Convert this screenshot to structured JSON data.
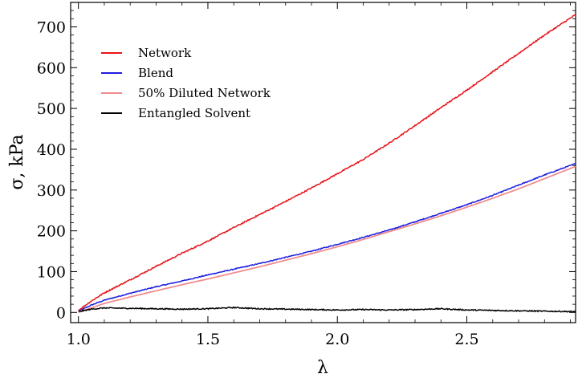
{
  "chart_data": {
    "type": "line",
    "xlabel": "λ",
    "ylabel": "σ, kPa",
    "xlim": [
      0.97,
      2.92
    ],
    "ylim": [
      -25,
      760
    ],
    "xticks": [
      1.0,
      1.5,
      2.0,
      2.5
    ],
    "xtick_labels": [
      "1.0",
      "1.5",
      "2.0",
      "2.5"
    ],
    "yticks": [
      0,
      100,
      200,
      300,
      400,
      500,
      600,
      700
    ],
    "ytick_labels": [
      "0",
      "100",
      "200",
      "300",
      "400",
      "500",
      "600",
      "700"
    ],
    "grid": false,
    "legend_position": "top-left",
    "series": [
      {
        "name": "Network",
        "color": "#e8141c",
        "x": [
          1.0,
          1.05,
          1.1,
          1.2,
          1.3,
          1.4,
          1.5,
          1.6,
          1.7,
          1.8,
          1.9,
          2.0,
          2.1,
          2.2,
          2.3,
          2.4,
          2.5,
          2.6,
          2.7,
          2.8,
          2.92
        ],
        "y": [
          5,
          28,
          48,
          80,
          113,
          145,
          175,
          208,
          240,
          272,
          305,
          340,
          375,
          415,
          458,
          502,
          545,
          590,
          635,
          680,
          730
        ]
      },
      {
        "name": "Blend",
        "color": "#1c1ce0",
        "x": [
          1.0,
          1.05,
          1.1,
          1.2,
          1.3,
          1.4,
          1.5,
          1.6,
          1.7,
          1.8,
          1.9,
          2.0,
          2.1,
          2.2,
          2.3,
          2.4,
          2.5,
          2.6,
          2.7,
          2.8,
          2.92
        ],
        "y": [
          3,
          18,
          30,
          47,
          63,
          77,
          92,
          106,
          120,
          135,
          150,
          167,
          184,
          202,
          222,
          243,
          264,
          287,
          312,
          337,
          365
        ]
      },
      {
        "name": "50% Diluted Network",
        "color": "#f08c8c",
        "x": [
          1.0,
          1.1,
          1.2,
          1.3,
          1.4,
          1.5,
          1.6,
          1.7,
          1.8,
          1.9,
          2.0,
          2.1,
          2.2,
          2.3,
          2.4,
          2.5,
          2.6,
          2.7,
          2.8,
          2.92
        ],
        "y": [
          0,
          22,
          38,
          53,
          68,
          82,
          97,
          112,
          128,
          144,
          161,
          179,
          198,
          217,
          237,
          258,
          280,
          303,
          328,
          358
        ]
      },
      {
        "name": "Entangled Solvent",
        "color": "#000000",
        "x": [
          1.0,
          1.05,
          1.1,
          1.2,
          1.3,
          1.4,
          1.5,
          1.6,
          1.7,
          1.8,
          1.9,
          2.0,
          2.1,
          2.2,
          2.3,
          2.4,
          2.5,
          2.6,
          2.7,
          2.8,
          2.92
        ],
        "y": [
          2,
          8,
          11,
          10,
          9,
          8,
          9,
          12,
          9,
          8,
          7,
          6,
          7,
          6,
          7,
          9,
          6,
          5,
          4,
          3,
          2
        ]
      }
    ]
  }
}
